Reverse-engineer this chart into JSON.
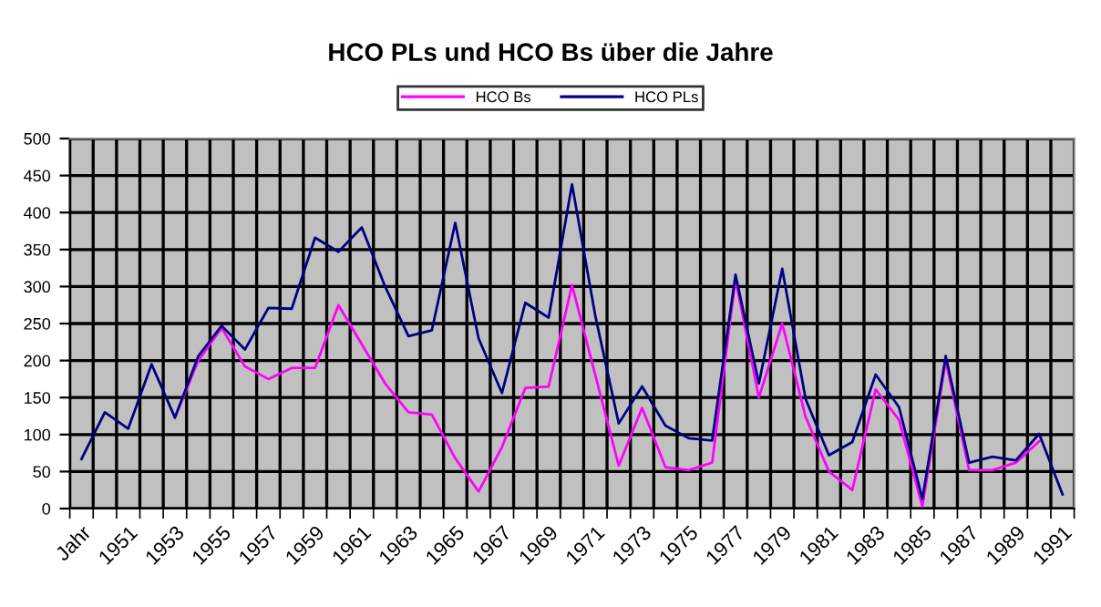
{
  "chart_data": {
    "type": "line",
    "title": "HCO PLs und HCO Bs über die Jahre",
    "categories": [
      "Jahr",
      null,
      "1951",
      null,
      "1953",
      null,
      "1955",
      null,
      "1957",
      null,
      "1959",
      null,
      "1961",
      null,
      "1963",
      null,
      "1965",
      null,
      "1967",
      null,
      "1969",
      null,
      "1971",
      null,
      "1973",
      null,
      "1975",
      null,
      "1977",
      null,
      "1979",
      null,
      "1981",
      null,
      "1983",
      null,
      "1985",
      null,
      "1987",
      null,
      "1989",
      null,
      "1991"
    ],
    "series": [
      {
        "name": "HCO Bs",
        "color": "#ff00ff",
        "values": [
          null,
          null,
          null,
          null,
          123,
          200,
          244,
          192,
          175,
          190,
          190,
          275,
          222,
          169,
          130,
          127,
          68,
          23,
          83,
          163,
          165,
          302,
          180,
          58,
          136,
          56,
          52,
          62,
          310,
          150,
          250,
          124,
          50,
          25,
          161,
          120,
          3,
          200,
          52,
          52,
          62,
          91,
          null
        ]
      },
      {
        "name": "HCO PLs",
        "color": "#000080",
        "values": [
          67,
          130,
          108,
          195,
          123,
          206,
          247,
          215,
          271,
          270,
          366,
          347,
          380,
          300,
          233,
          241,
          386,
          230,
          156,
          278,
          258,
          438,
          260,
          115,
          165,
          112,
          95,
          92,
          316,
          169,
          324,
          148,
          72,
          90,
          181,
          137,
          13,
          206,
          62,
          70,
          65,
          101,
          19
        ]
      }
    ],
    "ylim": [
      0,
      500
    ],
    "yticks": [
      0,
      50,
      100,
      150,
      200,
      250,
      300,
      350,
      400,
      450,
      500
    ],
    "grid": true,
    "legend": "top",
    "marker": "none",
    "line_style": "solid"
  }
}
